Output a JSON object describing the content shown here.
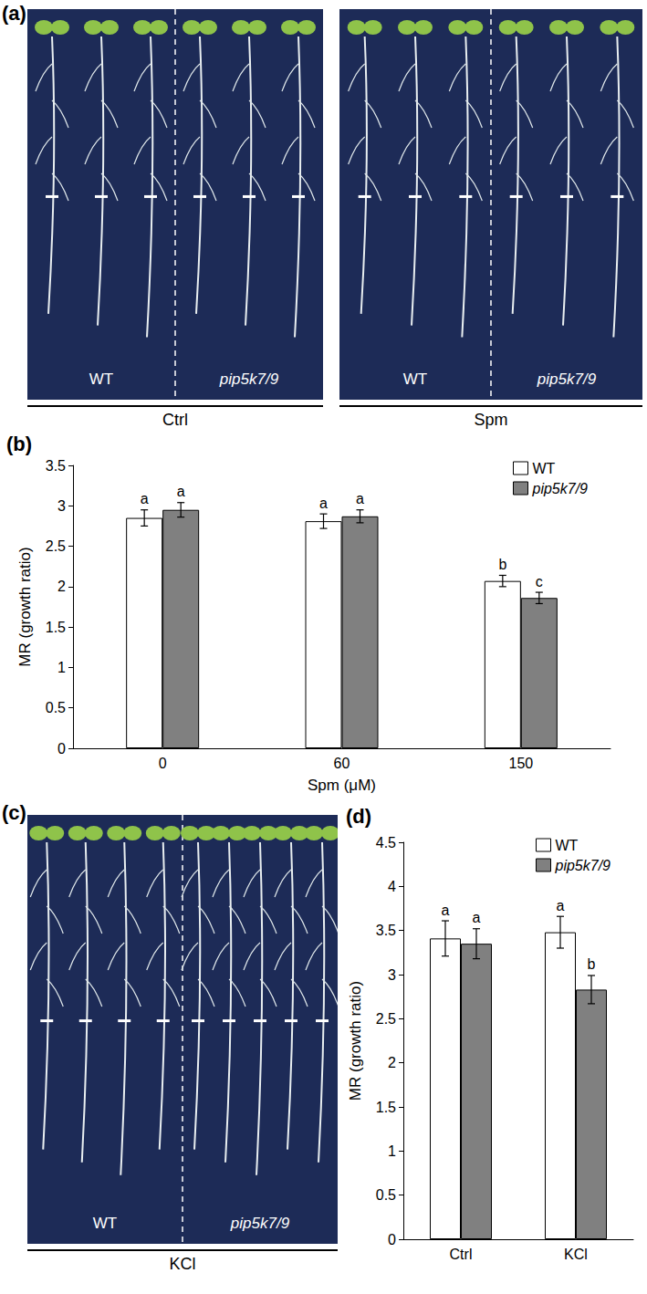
{
  "chart_data": [
    {
      "type": "bar",
      "title": "(b)",
      "categories": [
        "0",
        "60",
        "150"
      ],
      "x_label": "Spm (μM)",
      "y_label": "MR (growth ratio)",
      "series": [
        {
          "name": "WT",
          "color": "#ffffff",
          "values": [
            2.85,
            2.81,
            2.07
          ],
          "errors": [
            0.1,
            0.09,
            0.07
          ],
          "letters": [
            "a",
            "a",
            "b"
          ]
        },
        {
          "name": "pip5k7/9",
          "color": "#808080",
          "values": [
            2.95,
            2.87,
            1.86
          ],
          "errors": [
            0.09,
            0.08,
            0.07
          ],
          "letters": [
            "a",
            "a",
            "c"
          ]
        }
      ],
      "ylim": [
        0,
        3.5
      ],
      "yticks": [
        0,
        0.5,
        1,
        1.5,
        2,
        2.5,
        3,
        3.5
      ],
      "grid": false,
      "legend": "top-right"
    },
    {
      "type": "bar",
      "title": "(d)",
      "categories": [
        "Ctrl",
        "KCl"
      ],
      "y_label": "MR (growth ratio)",
      "series": [
        {
          "name": "WT",
          "color": "#ffffff",
          "values": [
            3.41,
            3.48
          ],
          "errors": [
            0.2,
            0.18
          ],
          "letters": [
            "a",
            "a"
          ]
        },
        {
          "name": "pip5k7/9",
          "color": "#808080",
          "values": [
            3.35,
            2.83
          ],
          "errors": [
            0.17,
            0.16
          ],
          "letters": [
            "a",
            "b"
          ]
        }
      ],
      "ylim": [
        0,
        4.5
      ],
      "yticks": [
        0,
        0.5,
        1,
        1.5,
        2,
        2.5,
        3,
        3.5,
        4,
        4.5
      ],
      "grid": false,
      "legend": "top-right"
    }
  ],
  "images": [
    {
      "title": "(a)",
      "panels": [
        {
          "condition": "Ctrl",
          "groups": [
            {
              "label": "WT",
              "seedlings": 3
            },
            {
              "label": "pip5k7/9",
              "seedlings": 3
            }
          ]
        },
        {
          "condition": "Spm",
          "groups": [
            {
              "label": "WT",
              "seedlings": 3
            },
            {
              "label": "pip5k7/9",
              "seedlings": 3
            }
          ]
        }
      ]
    },
    {
      "title": "(c)",
      "panels": [
        {
          "condition": "KCl",
          "groups": [
            {
              "label": "WT",
              "seedlings": 4
            },
            {
              "label": "pip5k7/9",
              "seedlings": 5
            }
          ]
        }
      ]
    }
  ]
}
